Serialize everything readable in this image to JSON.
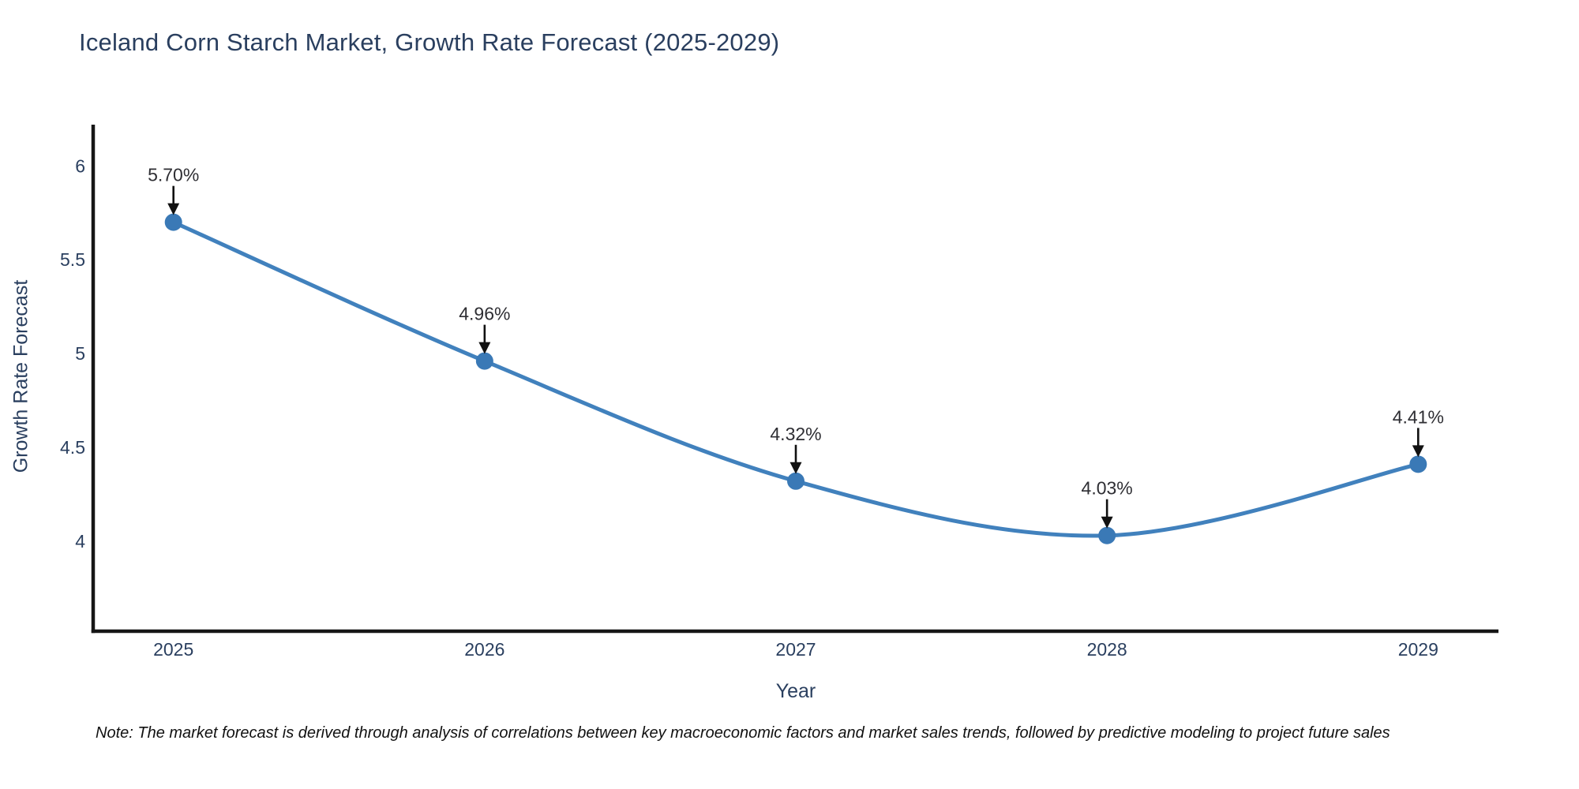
{
  "note": {
    "text": "Note: The market forecast is derived through analysis of correlations between key macroeconomic factors and market sales trends, followed by predictive modeling to project future sales"
  },
  "chart_data": {
    "type": "line",
    "title": "Iceland Corn Starch Market, Growth Rate Forecast (2025-2029)",
    "xlabel": "Year",
    "ylabel": "Growth Rate Forecast",
    "x": [
      2025,
      2026,
      2027,
      2028,
      2029
    ],
    "series": [
      {
        "name": "Growth Rate Forecast",
        "values": [
          5.7,
          4.96,
          4.32,
          4.03,
          4.41
        ]
      }
    ],
    "point_labels": [
      "5.70%",
      "4.96%",
      "4.32%",
      "4.03%",
      "4.41%"
    ],
    "xticks": [
      2025,
      2026,
      2027,
      2028,
      2029
    ],
    "yticks": [
      4,
      4.5,
      5,
      5.5,
      6
    ],
    "xlim": [
      2024.742,
      2029.258
    ],
    "ylim": [
      3.52,
      6.22
    ],
    "grid": false,
    "legend_position": "none",
    "line_shape": "spline",
    "annotation_arrows": true,
    "colors": {
      "line": "#4181bd",
      "marker": "#3a79b6",
      "axis": "#161616",
      "tick_text": "#2a3f5f",
      "annotation_text": "#2e2e33",
      "arrow": "#111111"
    }
  }
}
